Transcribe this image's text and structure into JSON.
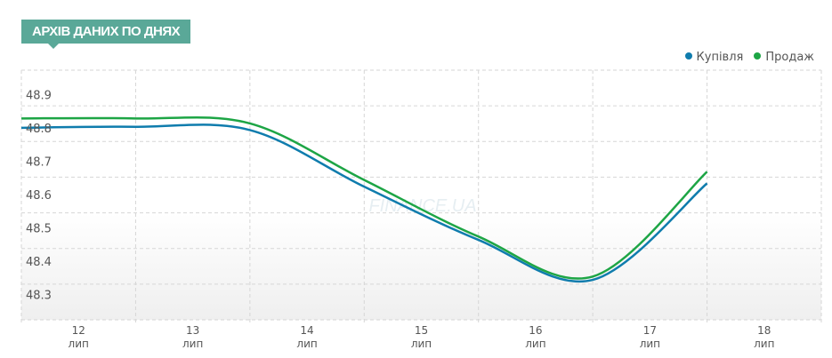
{
  "header": {
    "title": "АРХІВ ДАНИХ ПО ДНЯХ"
  },
  "watermark": "FINANCE.UA",
  "chart_data": {
    "type": "line",
    "title": "",
    "x": [
      "12",
      "13",
      "14",
      "15",
      "16",
      "17",
      "18"
    ],
    "x_sublabel": "лип",
    "yticks": [
      "48.9",
      "48.8",
      "48.7",
      "48.6",
      "48.5",
      "48.4",
      "48.3"
    ],
    "ylim": [
      48.25,
      49.0
    ],
    "grid": true,
    "legend_position": "top-right",
    "series": [
      {
        "name": "Купівля",
        "color": "#0f7cad",
        "values": [
          48.827,
          48.83,
          48.82,
          48.65,
          48.49,
          48.37,
          48.66
        ]
      },
      {
        "name": "Продаж",
        "color": "#1da545",
        "values": [
          48.855,
          48.855,
          48.84,
          48.67,
          48.5,
          48.38,
          48.695
        ]
      }
    ]
  }
}
